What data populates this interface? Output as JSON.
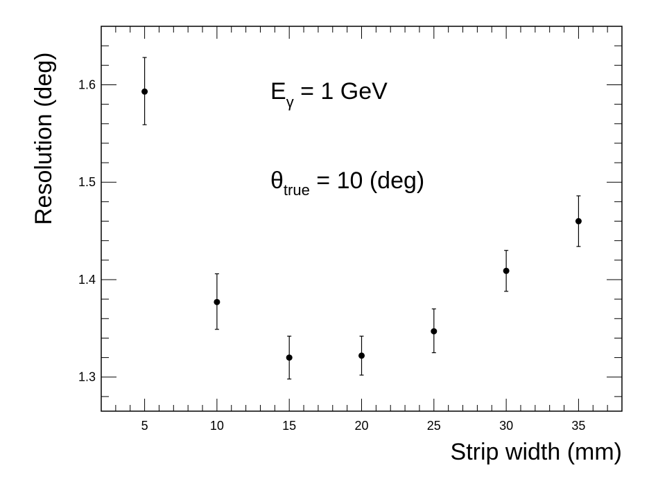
{
  "chart_data": {
    "type": "scatter",
    "xlabel": "Strip width (mm)",
    "ylabel": "Resolution (deg)",
    "xlim": [
      2,
      38
    ],
    "ylim": [
      1.265,
      1.66
    ],
    "x_ticks": [
      5,
      10,
      15,
      20,
      25,
      30,
      35
    ],
    "y_ticks": [
      1.3,
      1.4,
      1.5,
      1.6
    ],
    "x_tick_labels": [
      "5",
      "10",
      "15",
      "20",
      "25",
      "30",
      "35"
    ],
    "y_tick_labels": [
      "1.3",
      "1.4",
      "1.5",
      "1.6"
    ],
    "x_minor_step": 1,
    "y_minor_step": 0.02,
    "grid": false,
    "marker_color": "#000000",
    "series": [
      {
        "x": [
          5,
          10,
          15,
          20,
          25,
          30,
          35
        ],
        "y": [
          1.593,
          1.377,
          1.32,
          1.322,
          1.347,
          1.409,
          1.46
        ],
        "yerr_low": [
          0.034,
          0.028,
          0.022,
          0.02,
          0.022,
          0.021,
          0.026
        ],
        "yerr_high": [
          0.035,
          0.029,
          0.022,
          0.02,
          0.023,
          0.021,
          0.026
        ]
      }
    ],
    "annotations": [
      {
        "main": "E",
        "sub": "γ",
        "rest": " = 1 GeV"
      },
      {
        "main": "θ",
        "sub": "true",
        "rest": " = 10 (deg)"
      }
    ]
  }
}
